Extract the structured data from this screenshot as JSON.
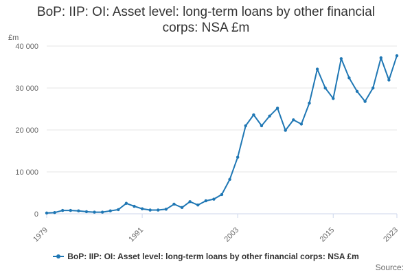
{
  "chart_data": {
    "type": "line",
    "title": "BoP: IIP: OI: Asset level: long-term loans by other financial corps: NSA £m",
    "ylabel": "£m",
    "xlabel": "",
    "x": [
      1979,
      1980,
      1981,
      1982,
      1983,
      1984,
      1985,
      1986,
      1987,
      1988,
      1989,
      1990,
      1991,
      1992,
      1993,
      1994,
      1995,
      1996,
      1997,
      1998,
      1999,
      2000,
      2001,
      2002,
      2003,
      2004,
      2005,
      2006,
      2007,
      2008,
      2009,
      2010,
      2011,
      2012,
      2013,
      2014,
      2015,
      2016,
      2017,
      2018,
      2019,
      2020,
      2021,
      2022,
      2023
    ],
    "series": [
      {
        "name": "BoP: IIP: OI: Asset level: long-term loans by other financial corps: NSA £m",
        "color": "#1f77b4",
        "values": [
          200,
          300,
          800,
          800,
          700,
          500,
          400,
          400,
          700,
          1000,
          2500,
          1800,
          1200,
          900,
          900,
          1100,
          2300,
          1500,
          2900,
          2100,
          3100,
          3500,
          4600,
          8200,
          13500,
          21000,
          23600,
          21000,
          23300,
          25200,
          19900,
          22400,
          21400,
          26400,
          34500,
          30000,
          27500,
          37000,
          32400,
          29200,
          26800,
          30000,
          37200,
          31900,
          37700
        ]
      }
    ],
    "ylim": [
      0,
      40000
    ],
    "yticks": [
      0,
      10000,
      20000,
      30000,
      40000
    ],
    "ytick_labels": [
      "0",
      "10 000",
      "20 000",
      "30 000",
      "40 000"
    ],
    "xticks": [
      1979,
      1991,
      2003,
      2015,
      2023
    ],
    "xtick_labels": [
      "1979",
      "1991",
      "2003",
      "2015",
      "2023"
    ],
    "grid": "horizontal",
    "legend_position": "bottom"
  },
  "source_label": "Source:"
}
